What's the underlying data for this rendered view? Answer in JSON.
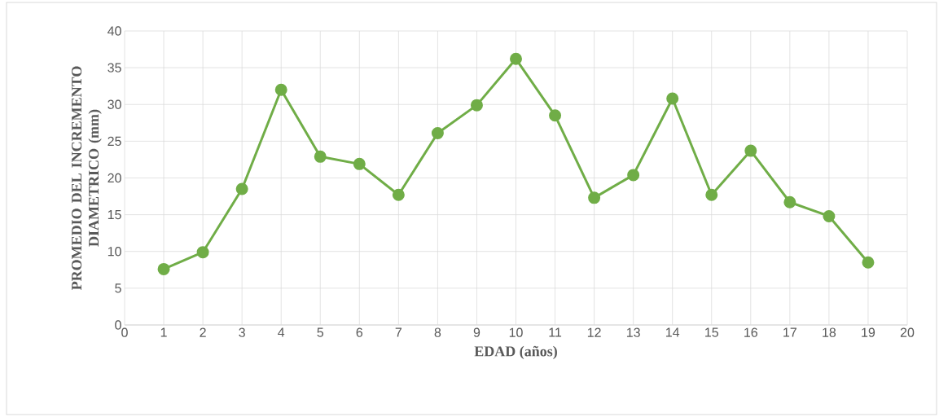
{
  "chart_data": {
    "type": "line",
    "xlabel": "EDAD (años)",
    "ylabel": "PROMEDIO DEL INCREMENTO DIAMETRICO (mm)",
    "x": [
      1,
      2,
      3,
      4,
      5,
      6,
      7,
      8,
      9,
      10,
      11,
      12,
      13,
      14,
      15,
      16,
      17,
      18,
      19
    ],
    "series": [
      {
        "color": "#70ad47",
        "values": [
          7.6,
          9.9,
          18.5,
          32.0,
          22.9,
          21.9,
          17.7,
          26.1,
          29.9,
          36.2,
          28.5,
          17.3,
          20.4,
          30.8,
          17.7,
          23.7,
          16.7,
          14.8,
          8.5
        ]
      }
    ],
    "xlim": [
      0,
      20
    ],
    "xticks": [
      0,
      1,
      2,
      3,
      4,
      5,
      6,
      7,
      8,
      9,
      10,
      11,
      12,
      13,
      14,
      15,
      16,
      17,
      18,
      19,
      20
    ],
    "ylim": [
      0,
      40
    ],
    "yticks": [
      0,
      5,
      10,
      15,
      20,
      25,
      30,
      35,
      40
    ],
    "grid": true,
    "marker": "circle",
    "line_style": "solid"
  }
}
